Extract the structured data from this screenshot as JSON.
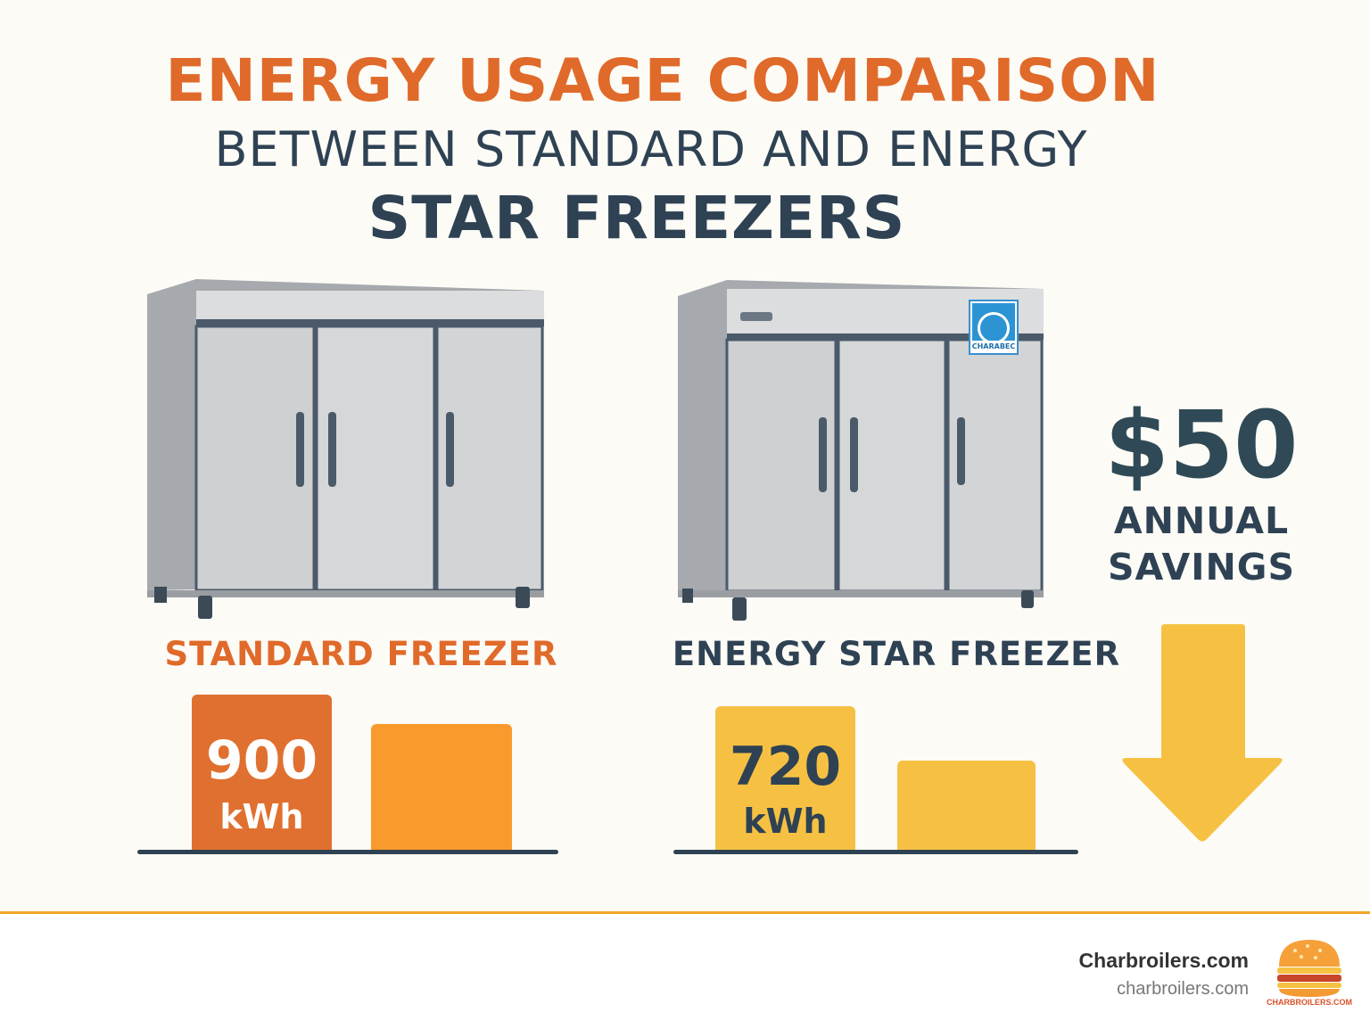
{
  "heading": {
    "line1": "ENERGY USAGE COMPARISON",
    "line2": "BETWEEN STANDARD AND ENERGY",
    "line3": "STAR FREEZERS"
  },
  "standard": {
    "label": "STANDARD FREEZER",
    "value": "900",
    "unit": "kWh"
  },
  "energy_star": {
    "label": "ENERGY STAR FREEZER",
    "value": "720",
    "unit": "kWh",
    "badge_text": "CHARABEC"
  },
  "savings": {
    "amount": "$50",
    "line1": "ANNUAL",
    "line2": "SAVINGS"
  },
  "footer": {
    "brand": "Charbroilers.com",
    "url": "charbroilers.com",
    "logo_text": "CHARBROILERS.COM"
  },
  "colors": {
    "orange": "#e06a2a",
    "light_orange": "#f99a2c",
    "yellow": "#f6c143",
    "navy": "#2f4254",
    "accent_line": "#f2a429"
  },
  "icons": [
    "freezer-icon",
    "energy-star-badge-icon",
    "down-arrow-icon",
    "burger-logo-icon"
  ]
}
